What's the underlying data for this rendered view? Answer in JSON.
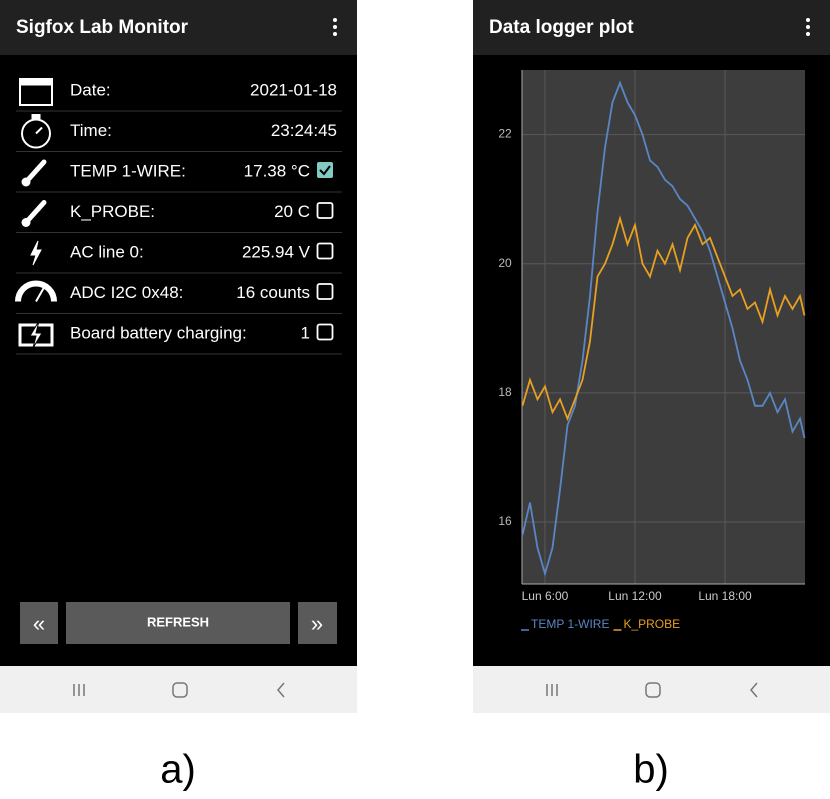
{
  "left_screen": {
    "header": {
      "title": "Sigfox Lab Monitor"
    },
    "rows": [
      {
        "label": "Date:",
        "value": "2021-01-18"
      },
      {
        "label": "Time:",
        "value": "23:24:45"
      },
      {
        "label": "TEMP 1-WIRE:",
        "value": "17.38 °C",
        "checked": true
      },
      {
        "label": "K_PROBE:",
        "value": "20 C",
        "checked": false
      },
      {
        "label": "AC line 0:",
        "value": "225.94 V",
        "checked": false
      },
      {
        "label": "ADC I2C 0x48:",
        "value": "16 counts",
        "checked": false
      },
      {
        "label": "Board battery charging:",
        "value": "1",
        "checked": false
      }
    ],
    "buttons": {
      "prev": "«",
      "refresh": "REFRESH",
      "next": "»"
    },
    "caption": "a)"
  },
  "right_screen": {
    "header": {
      "title": "Data logger plot"
    },
    "caption": "b)"
  },
  "chart_data": {
    "type": "line",
    "x": [
      4.5,
      5,
      5.5,
      6,
      6.5,
      7,
      7.5,
      8,
      8.5,
      9,
      9.5,
      10,
      10.5,
      11,
      11.5,
      12,
      12.5,
      13,
      13.5,
      14,
      14.5,
      15,
      15.5,
      16,
      16.5,
      17,
      17.5,
      18,
      18.5,
      19,
      19.5,
      20,
      20.5,
      21,
      21.5,
      22,
      22.5,
      23,
      23.3
    ],
    "series": [
      {
        "name": "TEMP 1-WIRE",
        "color": "#5b86c5",
        "values": [
          15.8,
          16.3,
          15.6,
          15.2,
          15.6,
          16.5,
          17.5,
          17.8,
          18.5,
          19.5,
          20.8,
          21.8,
          22.5,
          22.8,
          22.5,
          22.3,
          22.0,
          21.6,
          21.5,
          21.3,
          21.2,
          21.0,
          20.9,
          20.7,
          20.5,
          20.2,
          19.8,
          19.4,
          19.0,
          18.5,
          18.2,
          17.8,
          17.8,
          18.0,
          17.7,
          17.9,
          17.4,
          17.6,
          17.3
        ]
      },
      {
        "name": "K_PROBE",
        "color": "#e8a020",
        "values": [
          17.8,
          18.2,
          17.9,
          18.1,
          17.7,
          17.9,
          17.6,
          17.9,
          18.2,
          18.8,
          19.8,
          20.0,
          20.3,
          20.7,
          20.3,
          20.6,
          20.0,
          19.8,
          20.2,
          20.0,
          20.3,
          19.9,
          20.4,
          20.6,
          20.3,
          20.4,
          20.1,
          19.8,
          19.5,
          19.6,
          19.3,
          19.4,
          19.1,
          19.6,
          19.2,
          19.5,
          19.3,
          19.5,
          19.2
        ]
      }
    ],
    "xlim": [
      4.47,
      23.33
    ],
    "xticks": [
      {
        "value": 6,
        "label": "Lun 6:00"
      },
      {
        "value": 12,
        "label": "Lun 12:00"
      },
      {
        "value": 18,
        "label": "Lun 18:00"
      }
    ],
    "ylim": [
      15.04,
      23.0
    ],
    "yticks": [
      16,
      18,
      20,
      22
    ],
    "grid": true
  }
}
